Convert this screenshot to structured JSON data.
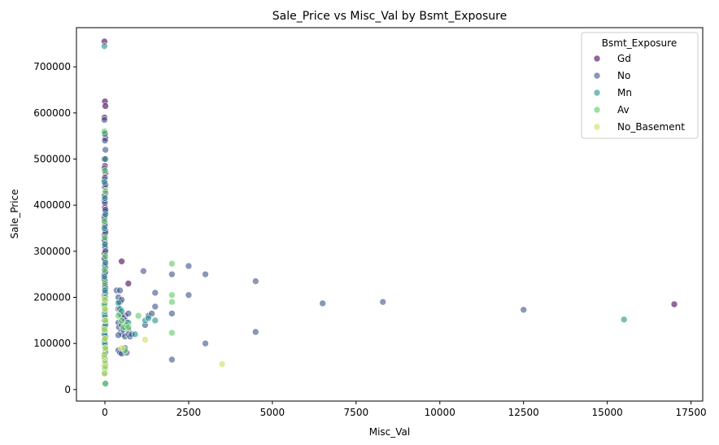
{
  "chart_data": {
    "type": "scatter",
    "title": "Sale_Price vs Misc_Val by Bsmt_Exposure",
    "xlabel": "Misc_Val",
    "ylabel": "Sale_Price",
    "xlim": [
      -850,
      17850
    ],
    "ylim": [
      -25000,
      785000
    ],
    "x_ticks": [
      0,
      2500,
      5000,
      7500,
      10000,
      12500,
      15000,
      17500
    ],
    "y_ticks": [
      0,
      100000,
      200000,
      300000,
      400000,
      500000,
      600000,
      700000
    ],
    "grid": false,
    "legend": {
      "title": "Bsmt_Exposure",
      "placement": "top-right"
    },
    "series": [
      {
        "name": "Gd",
        "color": "#440154",
        "points": [
          [
            0,
            755000
          ],
          [
            0,
            625000
          ],
          [
            0,
            615000
          ],
          [
            0,
            590000
          ],
          [
            0,
            555000
          ],
          [
            0,
            545000
          ],
          [
            0,
            500000
          ],
          [
            0,
            485000
          ],
          [
            0,
            470000
          ],
          [
            0,
            455000
          ],
          [
            0,
            440000
          ],
          [
            0,
            425000
          ],
          [
            0,
            410000
          ],
          [
            0,
            395000
          ],
          [
            0,
            385000
          ],
          [
            0,
            375000
          ],
          [
            0,
            360000
          ],
          [
            0,
            345000
          ],
          [
            0,
            335000
          ],
          [
            0,
            320000
          ],
          [
            0,
            305000
          ],
          [
            0,
            295000
          ],
          [
            0,
            280000
          ],
          [
            0,
            265000
          ],
          [
            0,
            250000
          ],
          [
            0,
            235000
          ],
          [
            0,
            220000
          ],
          [
            0,
            205000
          ],
          [
            0,
            190000
          ],
          [
            0,
            170000
          ],
          [
            0,
            150000
          ],
          [
            0,
            130000
          ],
          [
            500,
            278000
          ],
          [
            700,
            230000
          ],
          [
            17000,
            185000
          ],
          [
            450,
            190000
          ],
          [
            600,
            160000
          ]
        ]
      },
      {
        "name": "No",
        "color": "#3b528b",
        "points": [
          [
            0,
            585000
          ],
          [
            0,
            540000
          ],
          [
            0,
            520000
          ],
          [
            0,
            480000
          ],
          [
            0,
            460000
          ],
          [
            0,
            445000
          ],
          [
            0,
            420000
          ],
          [
            0,
            405000
          ],
          [
            0,
            390000
          ],
          [
            0,
            370000
          ],
          [
            0,
            355000
          ],
          [
            0,
            340000
          ],
          [
            0,
            325000
          ],
          [
            0,
            310000
          ],
          [
            0,
            300000
          ],
          [
            0,
            285000
          ],
          [
            0,
            270000
          ],
          [
            0,
            255000
          ],
          [
            0,
            240000
          ],
          [
            0,
            225000
          ],
          [
            0,
            210000
          ],
          [
            0,
            200000
          ],
          [
            0,
            185000
          ],
          [
            0,
            175000
          ],
          [
            0,
            165000
          ],
          [
            0,
            155000
          ],
          [
            0,
            145000
          ],
          [
            0,
            135000
          ],
          [
            0,
            125000
          ],
          [
            0,
            115000
          ],
          [
            0,
            105000
          ],
          [
            0,
            95000
          ],
          [
            0,
            85000
          ],
          [
            0,
            75000
          ],
          [
            0,
            65000
          ],
          [
            0,
            55000
          ],
          [
            350,
            215000
          ],
          [
            400,
            200000
          ],
          [
            450,
            215000
          ],
          [
            500,
            195000
          ],
          [
            400,
            175000
          ],
          [
            450,
            165000
          ],
          [
            500,
            160000
          ],
          [
            550,
            155000
          ],
          [
            600,
            150000
          ],
          [
            650,
            145000
          ],
          [
            700,
            165000
          ],
          [
            400,
            145000
          ],
          [
            420,
            135000
          ],
          [
            480,
            125000
          ],
          [
            520,
            120000
          ],
          [
            600,
            115000
          ],
          [
            700,
            130000
          ],
          [
            400,
            85000
          ],
          [
            450,
            80000
          ],
          [
            500,
            78000
          ],
          [
            600,
            90000
          ],
          [
            650,
            80000
          ],
          [
            400,
            118000
          ],
          [
            500,
            140000
          ],
          [
            550,
            130000
          ],
          [
            700,
            120000
          ],
          [
            750,
            115000
          ],
          [
            800,
            120000
          ],
          [
            1150,
            257000
          ],
          [
            1200,
            140000
          ],
          [
            1300,
            160000
          ],
          [
            1400,
            165000
          ],
          [
            1500,
            180000
          ],
          [
            1500,
            210000
          ],
          [
            2000,
            250000
          ],
          [
            2000,
            165000
          ],
          [
            2000,
            65000
          ],
          [
            2500,
            268000
          ],
          [
            2500,
            205000
          ],
          [
            3000,
            250000
          ],
          [
            3000,
            100000
          ],
          [
            4500,
            235000
          ],
          [
            4500,
            125000
          ],
          [
            6500,
            187000
          ],
          [
            8300,
            190000
          ],
          [
            12500,
            173000
          ]
        ]
      },
      {
        "name": "Mn",
        "color": "#21918c",
        "points": [
          [
            0,
            745000
          ],
          [
            0,
            555000
          ],
          [
            0,
            500000
          ],
          [
            0,
            450000
          ],
          [
            0,
            415000
          ],
          [
            0,
            380000
          ],
          [
            0,
            350000
          ],
          [
            0,
            315000
          ],
          [
            0,
            275000
          ],
          [
            0,
            245000
          ],
          [
            0,
            215000
          ],
          [
            0,
            195000
          ],
          [
            0,
            180000
          ],
          [
            0,
            160000
          ],
          [
            0,
            140000
          ],
          [
            0,
            120000
          ],
          [
            0,
            100000
          ],
          [
            0,
            80000
          ],
          [
            0,
            50000
          ],
          [
            0,
            35000
          ],
          [
            0,
            13000
          ],
          [
            400,
            188000
          ],
          [
            450,
            175000
          ],
          [
            500,
            170000
          ],
          [
            600,
            135000
          ],
          [
            700,
            145000
          ],
          [
            900,
            120000
          ],
          [
            1200,
            150000
          ],
          [
            1300,
            155000
          ],
          [
            1500,
            150000
          ],
          [
            15500,
            152000
          ]
        ]
      },
      {
        "name": "Av",
        "color": "#5ec962",
        "points": [
          [
            0,
            560000
          ],
          [
            0,
            475000
          ],
          [
            0,
            430000
          ],
          [
            0,
            365000
          ],
          [
            0,
            330000
          ],
          [
            0,
            290000
          ],
          [
            0,
            260000
          ],
          [
            0,
            230000
          ],
          [
            0,
            200000
          ],
          [
            0,
            185000
          ],
          [
            0,
            170000
          ],
          [
            0,
            150000
          ],
          [
            0,
            130000
          ],
          [
            0,
            110000
          ],
          [
            0,
            90000
          ],
          [
            0,
            70000
          ],
          [
            0,
            45000
          ],
          [
            0,
            13000
          ],
          [
            400,
            160000
          ],
          [
            500,
            150000
          ],
          [
            550,
            135000
          ],
          [
            650,
            140000
          ],
          [
            700,
            135000
          ],
          [
            1000,
            160000
          ],
          [
            2000,
            273000
          ],
          [
            2000,
            205000
          ],
          [
            2000,
            190000
          ],
          [
            2000,
            123000
          ],
          [
            600,
            85000
          ]
        ]
      },
      {
        "name": "No_Basement",
        "color": "#c8e05a",
        "points": [
          [
            0,
            195000
          ],
          [
            0,
            175000
          ],
          [
            0,
            150000
          ],
          [
            0,
            130000
          ],
          [
            0,
            110000
          ],
          [
            0,
            90000
          ],
          [
            0,
            75000
          ],
          [
            0,
            60000
          ],
          [
            0,
            50000
          ],
          [
            0,
            35000
          ],
          [
            500,
            90000
          ],
          [
            1200,
            108000
          ],
          [
            3500,
            55000
          ]
        ]
      }
    ]
  }
}
